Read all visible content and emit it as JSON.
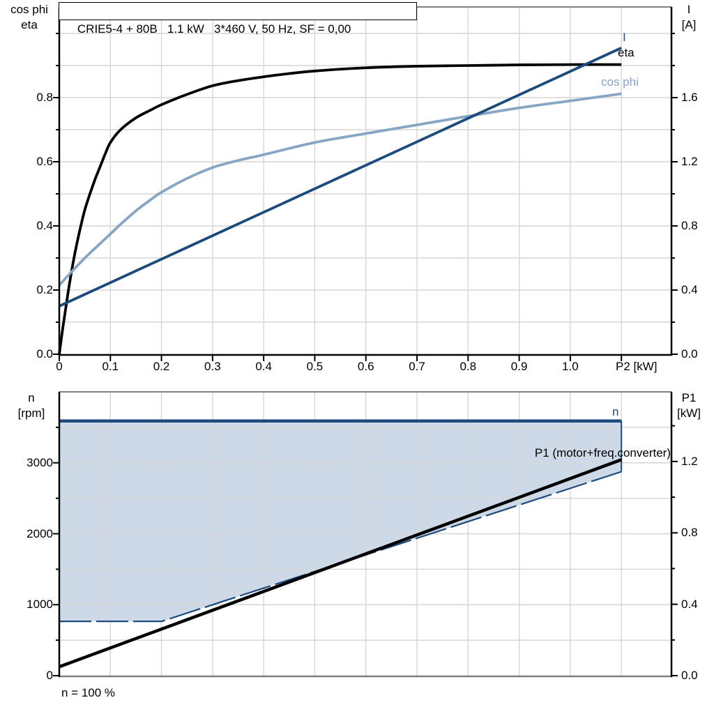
{
  "colors": {
    "black": "#000000",
    "dark_blue": "#1B4A7D",
    "light_blue": "#87A5C5",
    "fill": "#CDD9E7",
    "grid": "#D6D6D6",
    "frame_gray": "#808080",
    "background": "#FFFFFF"
  },
  "labels": {
    "title": "CRIE5-4 + 80B   1.1 kW   3*460 V, 50 Hz, SF = 0,00",
    "tl1": "cos phi",
    "tl2": "eta",
    "tr1": "I",
    "tr2": "[A]",
    "x_title": "P2 [kW]",
    "lbl_I": "I",
    "lbl_eta": "eta",
    "lbl_cosphi": "cos phi",
    "bl1": "n",
    "bl2": "[rpm]",
    "br1": "P1",
    "br2": "[kW]",
    "lbl_n": "n",
    "lbl_p1": "P1 (motor+freq.converter)",
    "note": "n = 100 %"
  },
  "chart_data": [
    {
      "id": "top",
      "type": "line",
      "title": "CRIE5-4 + 80B   1.1 kW   3*460 V, 50 Hz, SF = 0,00",
      "xlabel": "P2 [kW]",
      "ylabel_left": "cos phi / eta",
      "ylabel_right": "I [A]",
      "legend_position": "inline-end-of-curve",
      "grid_on": true,
      "x_axis": {
        "range": [
          0,
          1.198
        ],
        "grid": [
          0.1,
          0.2,
          0.3,
          0.4,
          0.5,
          0.6,
          0.7,
          0.8,
          0.9,
          1.0,
          1.1
        ],
        "tick_vals": [
          0,
          0.1,
          0.2,
          0.3,
          0.4,
          0.5,
          0.6,
          0.7,
          0.8,
          0.9,
          1.0,
          1.1
        ],
        "tick_labels": [
          "0",
          "0.1",
          "0.2",
          "0.3",
          "0.4",
          "0.5",
          "0.6",
          "0.7",
          "0.8",
          "0.9",
          "1.0",
          ""
        ]
      },
      "y_left": {
        "range": [
          0,
          1.0826
        ],
        "grid": [
          0.1,
          0.2,
          0.3,
          0.4,
          0.5,
          0.6,
          0.7,
          0.8,
          0.9,
          1.0
        ],
        "major_vals": [
          0,
          0.2,
          0.4,
          0.6,
          0.8
        ],
        "major_labels": [
          "0.0",
          "0.2",
          "0.4",
          "0.6",
          "0.8"
        ],
        "minor_vals": [
          0.1,
          0.3,
          0.5,
          0.7,
          0.9,
          1.0
        ]
      },
      "y_right": {
        "range": [
          0,
          2.1652
        ],
        "grid": [],
        "major_vals": [
          0,
          0.4,
          0.8,
          1.2,
          1.6
        ],
        "major_labels": [
          "0.0",
          "0.4",
          "0.8",
          "1.2",
          "1.6"
        ],
        "minor_vals": [
          0.2,
          0.6,
          1.0,
          1.4,
          1.8,
          2.0
        ]
      },
      "series": [
        {
          "name": "eta",
          "color": "black",
          "axis": "left",
          "w": 3.8,
          "smooth": true,
          "x": [
            0,
            0.005,
            0.01,
            0.02,
            0.03,
            0.04,
            0.05,
            0.06,
            0.07,
            0.08,
            0.09,
            0.1,
            0.12,
            0.15,
            0.18,
            0.2,
            0.25,
            0.3,
            0.35,
            0.4,
            0.45,
            0.5,
            0.6,
            0.7,
            0.8,
            0.9,
            1.0,
            1.1
          ],
          "y": [
            0,
            0.06,
            0.115,
            0.22,
            0.31,
            0.385,
            0.45,
            0.5,
            0.545,
            0.585,
            0.625,
            0.66,
            0.7,
            0.737,
            0.762,
            0.778,
            0.81,
            0.837,
            0.853,
            0.865,
            0.875,
            0.883,
            0.893,
            0.898,
            0.9,
            0.902,
            0.903,
            0.903
          ]
        },
        {
          "name": "cos phi",
          "color": "light_blue",
          "axis": "left",
          "w": 3.8,
          "smooth": true,
          "x": [
            0,
            0.02,
            0.05,
            0.08,
            0.1,
            0.12,
            0.15,
            0.18,
            0.2,
            0.25,
            0.3,
            0.35,
            0.4,
            0.5,
            0.6,
            0.7,
            0.8,
            0.9,
            1.0,
            1.1
          ],
          "y": [
            0.215,
            0.25,
            0.3,
            0.345,
            0.375,
            0.405,
            0.447,
            0.483,
            0.505,
            0.548,
            0.582,
            0.604,
            0.622,
            0.66,
            0.688,
            0.715,
            0.742,
            0.768,
            0.79,
            0.812
          ]
        },
        {
          "name": "I",
          "color": "dark_blue",
          "axis": "right",
          "w": 3.8,
          "x": [
            0,
            1.1
          ],
          "y": [
            0.3,
            1.91
          ]
        }
      ]
    },
    {
      "id": "bottom",
      "type": "line",
      "xlabel": "",
      "ylabel_left": "n [rpm]",
      "ylabel_right": "P1 [kW]",
      "grid_on": true,
      "x_axis": {
        "range": [
          0,
          1.198
        ],
        "grid": [
          0.1,
          0.2,
          0.3,
          0.4,
          0.5,
          0.6,
          0.7,
          0.8,
          0.9,
          1.0,
          1.1
        ],
        "tick_vals": [],
        "tick_labels": []
      },
      "y_left": {
        "range": [
          0,
          4000
        ],
        "grid": [
          500,
          1000,
          1500,
          2000,
          2500,
          3000,
          3500
        ],
        "major_vals": [
          0,
          1000,
          2000,
          3000
        ],
        "major_labels": [
          "0",
          "1000",
          "2000",
          "3000"
        ],
        "minor_vals": [
          500,
          1500,
          2500,
          3500
        ]
      },
      "y_right": {
        "range": [
          0,
          1.59
        ],
        "grid": [],
        "major_vals": [
          0,
          0.4,
          0.8,
          1.2
        ],
        "major_labels": [
          "0.0",
          "0.4",
          "0.8",
          "1.2"
        ],
        "minor_vals": [
          0.2,
          0.6,
          1.0,
          1.4
        ]
      },
      "series": [
        {
          "name": "n",
          "color": "dark_blue",
          "axis": "left",
          "w": 4.5,
          "x": [
            0,
            1.1
          ],
          "y": [
            3590,
            3590
          ]
        },
        {
          "name": "n_min",
          "color": "dark_blue",
          "axis": "left",
          "w": 2.2,
          "dash": "46 7",
          "x": [
            0,
            0.2,
            1.1
          ],
          "y": [
            765,
            765,
            2875
          ]
        },
        {
          "name": "P1 (motor+freq.converter)",
          "color": "black",
          "axis": "right",
          "w": 4.5,
          "x": [
            0,
            1.1
          ],
          "y": [
            0.05,
            1.21
          ]
        }
      ],
      "fill_between": {
        "upper": "n",
        "lower": "n_min",
        "color": "fill",
        "edge_color": "dark_blue"
      },
      "annotation": "n = 100 %"
    }
  ]
}
